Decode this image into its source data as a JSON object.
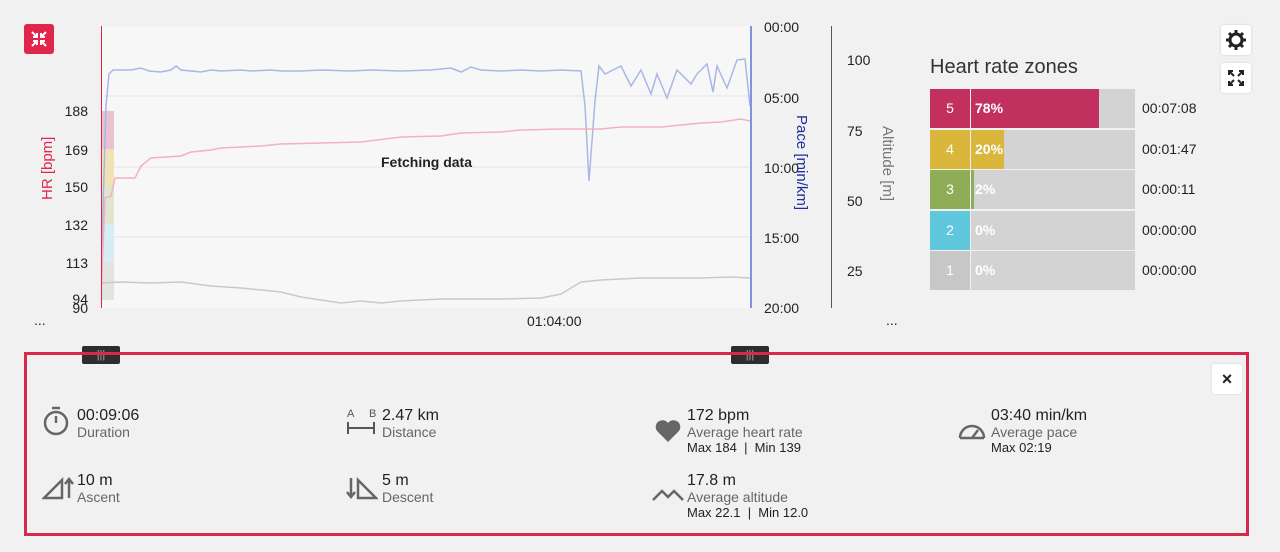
{
  "hr_axis": {
    "label": "HR [bpm]",
    "ticks": [
      "188",
      "169",
      "150",
      "132",
      "113",
      "94",
      "90"
    ]
  },
  "pace_axis": {
    "label": "Pace [min/km]",
    "ticks": [
      "00:00",
      "05:00",
      "10:00",
      "15:00",
      "20:00"
    ]
  },
  "alt_axis": {
    "label": "Altitude [m]",
    "ticks": [
      "100",
      "75",
      "50",
      "25"
    ]
  },
  "chart": {
    "fetching_text": "Fetching data",
    "time_label": "01:04:00",
    "left_more": "...",
    "right_more": "..."
  },
  "zones": {
    "title": "Heart rate zones",
    "rows": [
      {
        "zone": "5",
        "percent": "78%",
        "fill": 0.78,
        "time": "00:07:08",
        "color": "#c2305f"
      },
      {
        "zone": "4",
        "percent": "20%",
        "fill": 0.2,
        "time": "00:01:47",
        "color": "#dab63c"
      },
      {
        "zone": "3",
        "percent": "2%",
        "fill": 0.02,
        "time": "00:00:11",
        "color": "#8fac59"
      },
      {
        "zone": "2",
        "percent": "0%",
        "fill": 0.0,
        "time": "00:00:00",
        "color": "#5fc8dc"
      },
      {
        "zone": "1",
        "percent": "0%",
        "fill": 0.0,
        "time": "00:00:00",
        "color": "#c7c7c7"
      }
    ]
  },
  "handles": {
    "left": "|||",
    "right": "|||"
  },
  "summary": {
    "close": "×",
    "duration": {
      "value": "00:09:06",
      "label": "Duration"
    },
    "distance": {
      "value": "2.47 km",
      "label": "Distance",
      "a": "A",
      "b": "B"
    },
    "heart_rate": {
      "value": "172 bpm",
      "label": "Average heart rate",
      "sub": "Max 184  |  Min 139"
    },
    "pace": {
      "value": "03:40 min/km",
      "label": "Average pace",
      "sub": "Max 02:19"
    },
    "ascent": {
      "value": "10 m",
      "label": "Ascent"
    },
    "descent": {
      "value": "5 m",
      "label": "Descent"
    },
    "altitude": {
      "value": "17.8 m",
      "label": "Average altitude",
      "sub": "Max 22.1  |  Min 12.0"
    }
  }
}
